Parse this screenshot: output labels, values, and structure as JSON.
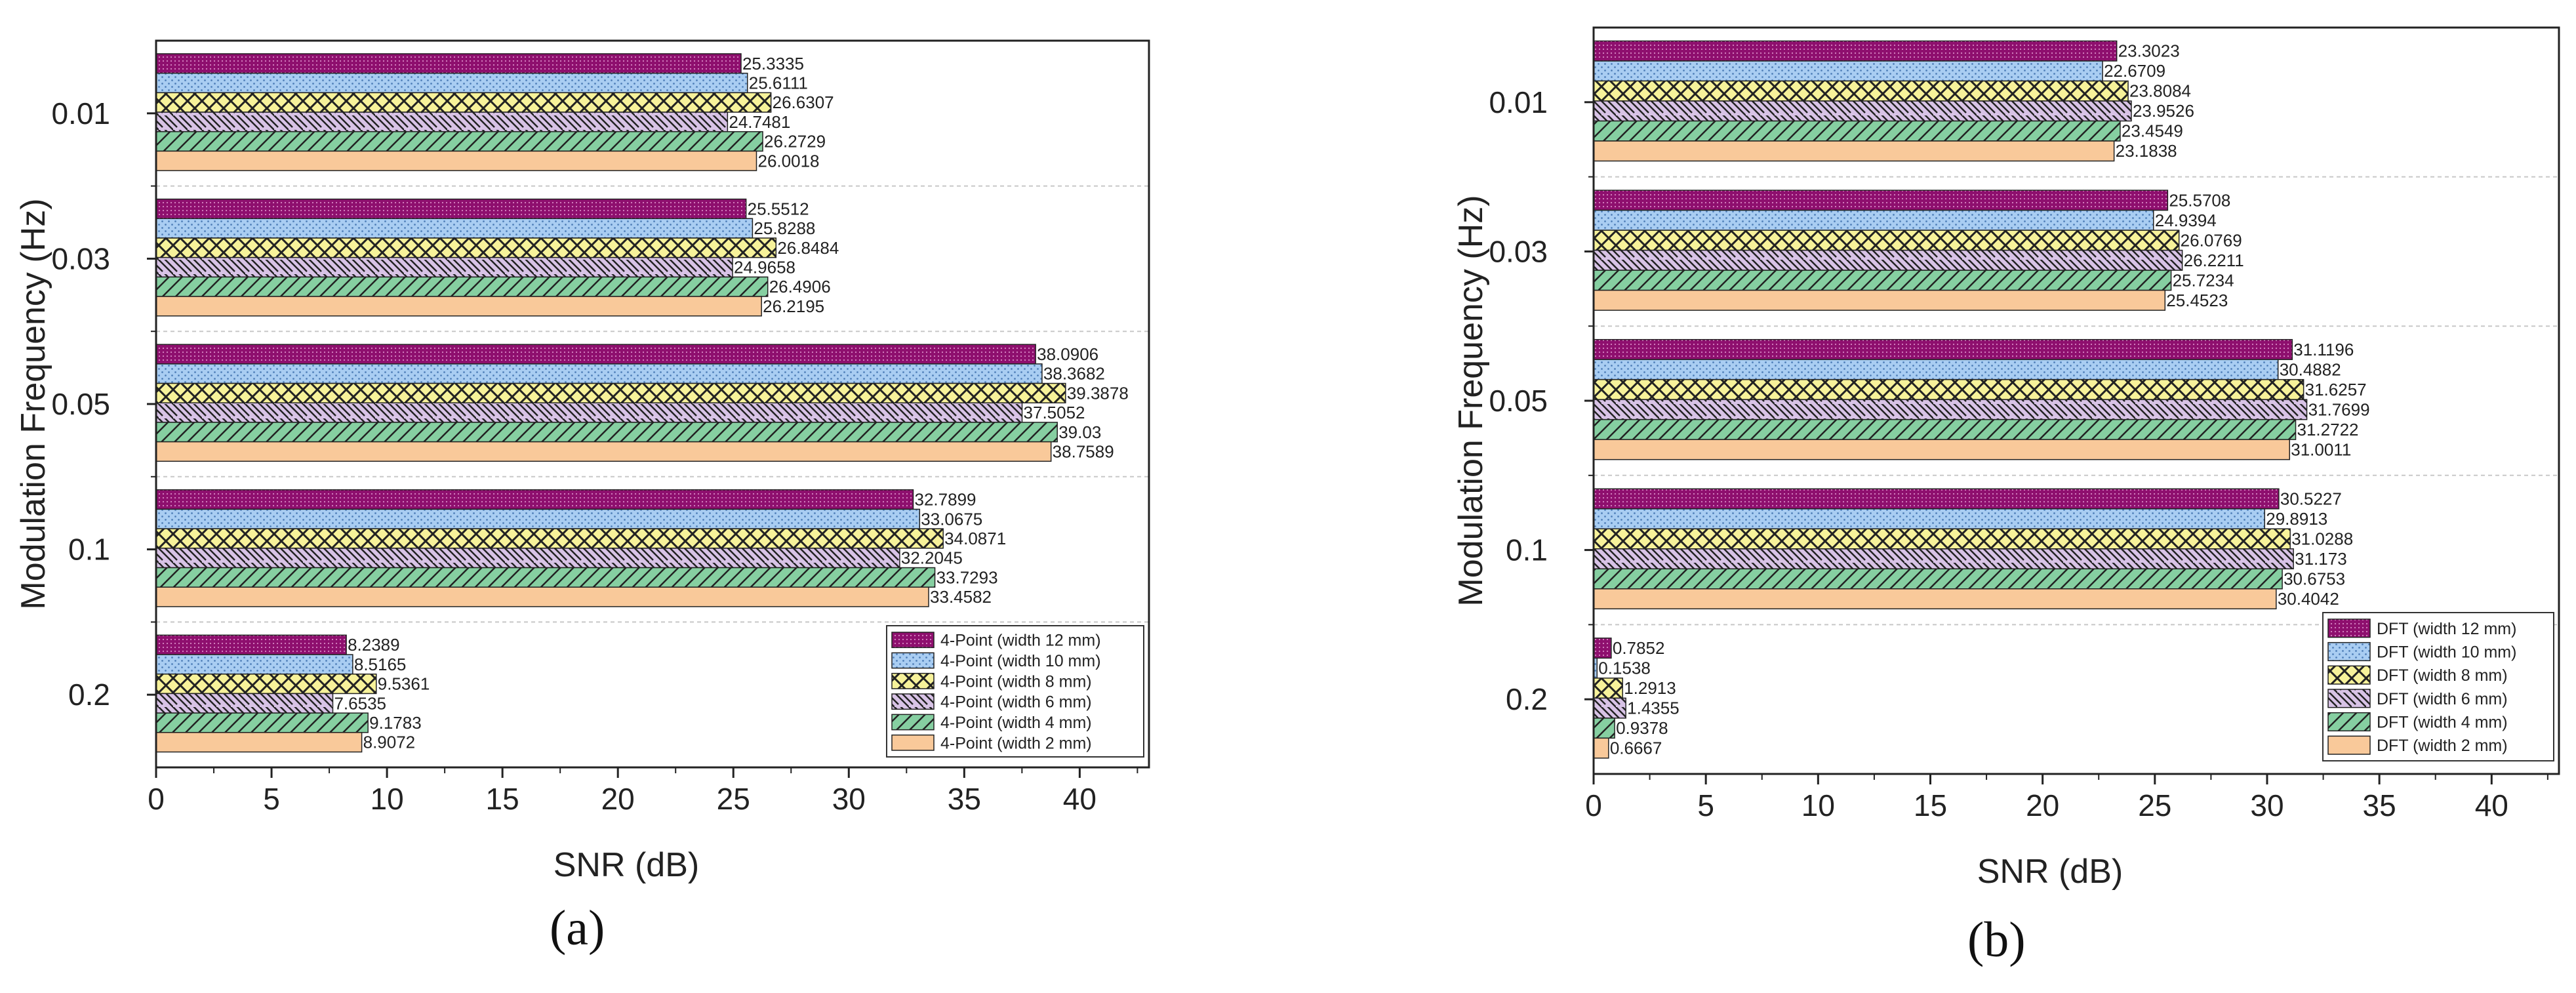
{
  "chart_data": [
    {
      "type": "bar",
      "orientation": "horizontal",
      "panel_label": "a",
      "xlabel": "SNR (dB)",
      "ylabel": "Modulation Frequency (Hz)",
      "xlim": [
        0,
        43
      ],
      "xticks": [
        0,
        5,
        10,
        15,
        20,
        25,
        30,
        35,
        40
      ],
      "categories": [
        "0.01",
        "0.03",
        "0.05",
        "0.1",
        "0.2"
      ],
      "legend_position": "bottom-right",
      "series": [
        {
          "name": "4-Point (width 12 mm)",
          "color": "#8e0f6e",
          "pattern": "dense-dots",
          "values": [
            25.3335,
            25.5512,
            38.0906,
            32.7899,
            8.2389
          ],
          "labels": [
            "25.3335",
            "25.5512",
            "38.0906",
            "32.7899",
            "8.2389"
          ]
        },
        {
          "name": "4-Point (width 10 mm)",
          "color": "#a9cdf2",
          "pattern": "dots",
          "values": [
            25.6111,
            25.8288,
            38.3682,
            33.0675,
            8.5165
          ],
          "labels": [
            "25.6111",
            "25.8288",
            "38.3682",
            "33.0675",
            "8.5165"
          ]
        },
        {
          "name": "4-Point (width 8 mm)",
          "color": "#f7f29a",
          "pattern": "crosshatch",
          "values": [
            26.6307,
            26.8484,
            39.3878,
            34.0871,
            9.5361
          ],
          "labels": [
            "26.6307",
            "26.8484",
            "39.3878",
            "34.0871",
            "9.5361"
          ]
        },
        {
          "name": "4-Point (width 6 mm)",
          "color": "#d8c3e6",
          "pattern": "backslash",
          "values": [
            24.7481,
            24.9658,
            37.5052,
            32.2045,
            7.6535
          ],
          "labels": [
            "24.7481",
            "24.9658",
            "37.5052",
            "32.2045",
            "7.6535"
          ]
        },
        {
          "name": "4-Point (width 4 mm)",
          "color": "#86cfa1",
          "pattern": "slash",
          "values": [
            26.2729,
            26.4906,
            39.03,
            33.7293,
            9.1783
          ],
          "labels": [
            "26.2729",
            "26.4906",
            "39.03",
            "33.7293",
            "9.1783"
          ]
        },
        {
          "name": "4-Point (width 2 mm)",
          "color": "#f9c99a",
          "pattern": "solid",
          "values": [
            26.0018,
            26.2195,
            38.7589,
            33.4582,
            8.9072
          ],
          "labels": [
            "26.0018",
            "26.2195",
            "38.7589",
            "33.4582",
            "8.9072"
          ]
        }
      ]
    },
    {
      "type": "bar",
      "orientation": "horizontal",
      "panel_label": "b",
      "xlabel": "SNR (dB)",
      "ylabel": "Modulation Frequency (Hz)",
      "xlim": [
        0,
        43
      ],
      "xticks": [
        0,
        5,
        10,
        15,
        20,
        25,
        30,
        35,
        40
      ],
      "categories": [
        "0.01",
        "0.03",
        "0.05",
        "0.1",
        "0.2"
      ],
      "legend_position": "bottom-right",
      "series": [
        {
          "name": "DFT (width 12 mm)",
          "color": "#8e0f6e",
          "pattern": "dense-dots",
          "values": [
            23.3023,
            25.5708,
            31.1196,
            30.5227,
            0.7852
          ],
          "labels": [
            "23.3023",
            "25.5708",
            "31.1196",
            "30.5227",
            "0.7852"
          ]
        },
        {
          "name": "DFT (width 10 mm)",
          "color": "#a9cdf2",
          "pattern": "dots",
          "values": [
            22.6709,
            24.9394,
            30.4882,
            29.8913,
            0.1538
          ],
          "labels": [
            "22.6709",
            "24.9394",
            "30.4882",
            "29.8913",
            "0.1538"
          ]
        },
        {
          "name": "DFT (width 8 mm)",
          "color": "#f7f29a",
          "pattern": "crosshatch",
          "values": [
            23.8084,
            26.0769,
            31.6257,
            31.0288,
            1.2913
          ],
          "labels": [
            "23.8084",
            "26.0769",
            "31.6257",
            "31.0288",
            "1.2913"
          ]
        },
        {
          "name": "DFT (width 6 mm)",
          "color": "#d8c3e6",
          "pattern": "backslash",
          "values": [
            23.9526,
            26.2211,
            31.7699,
            31.173,
            1.4355
          ],
          "labels": [
            "23.9526",
            "26.2211",
            "31.7699",
            "31.173",
            "1.4355"
          ]
        },
        {
          "name": "DFT (width 4 mm)",
          "color": "#86cfa1",
          "pattern": "slash",
          "values": [
            23.4549,
            25.7234,
            31.2722,
            30.6753,
            0.9378
          ],
          "labels": [
            "23.4549",
            "25.7234",
            "31.2722",
            "30.6753",
            "0.9378"
          ]
        },
        {
          "name": "DFT (width 2 mm)",
          "color": "#f9c99a",
          "pattern": "solid",
          "values": [
            23.1838,
            25.4523,
            31.0011,
            30.4042,
            0.6667
          ],
          "labels": [
            "23.1838",
            "25.4523",
            "31.0011",
            "30.4042",
            "0.6667"
          ]
        }
      ]
    }
  ],
  "captions": {
    "a": "(a)",
    "b": "(b)"
  }
}
